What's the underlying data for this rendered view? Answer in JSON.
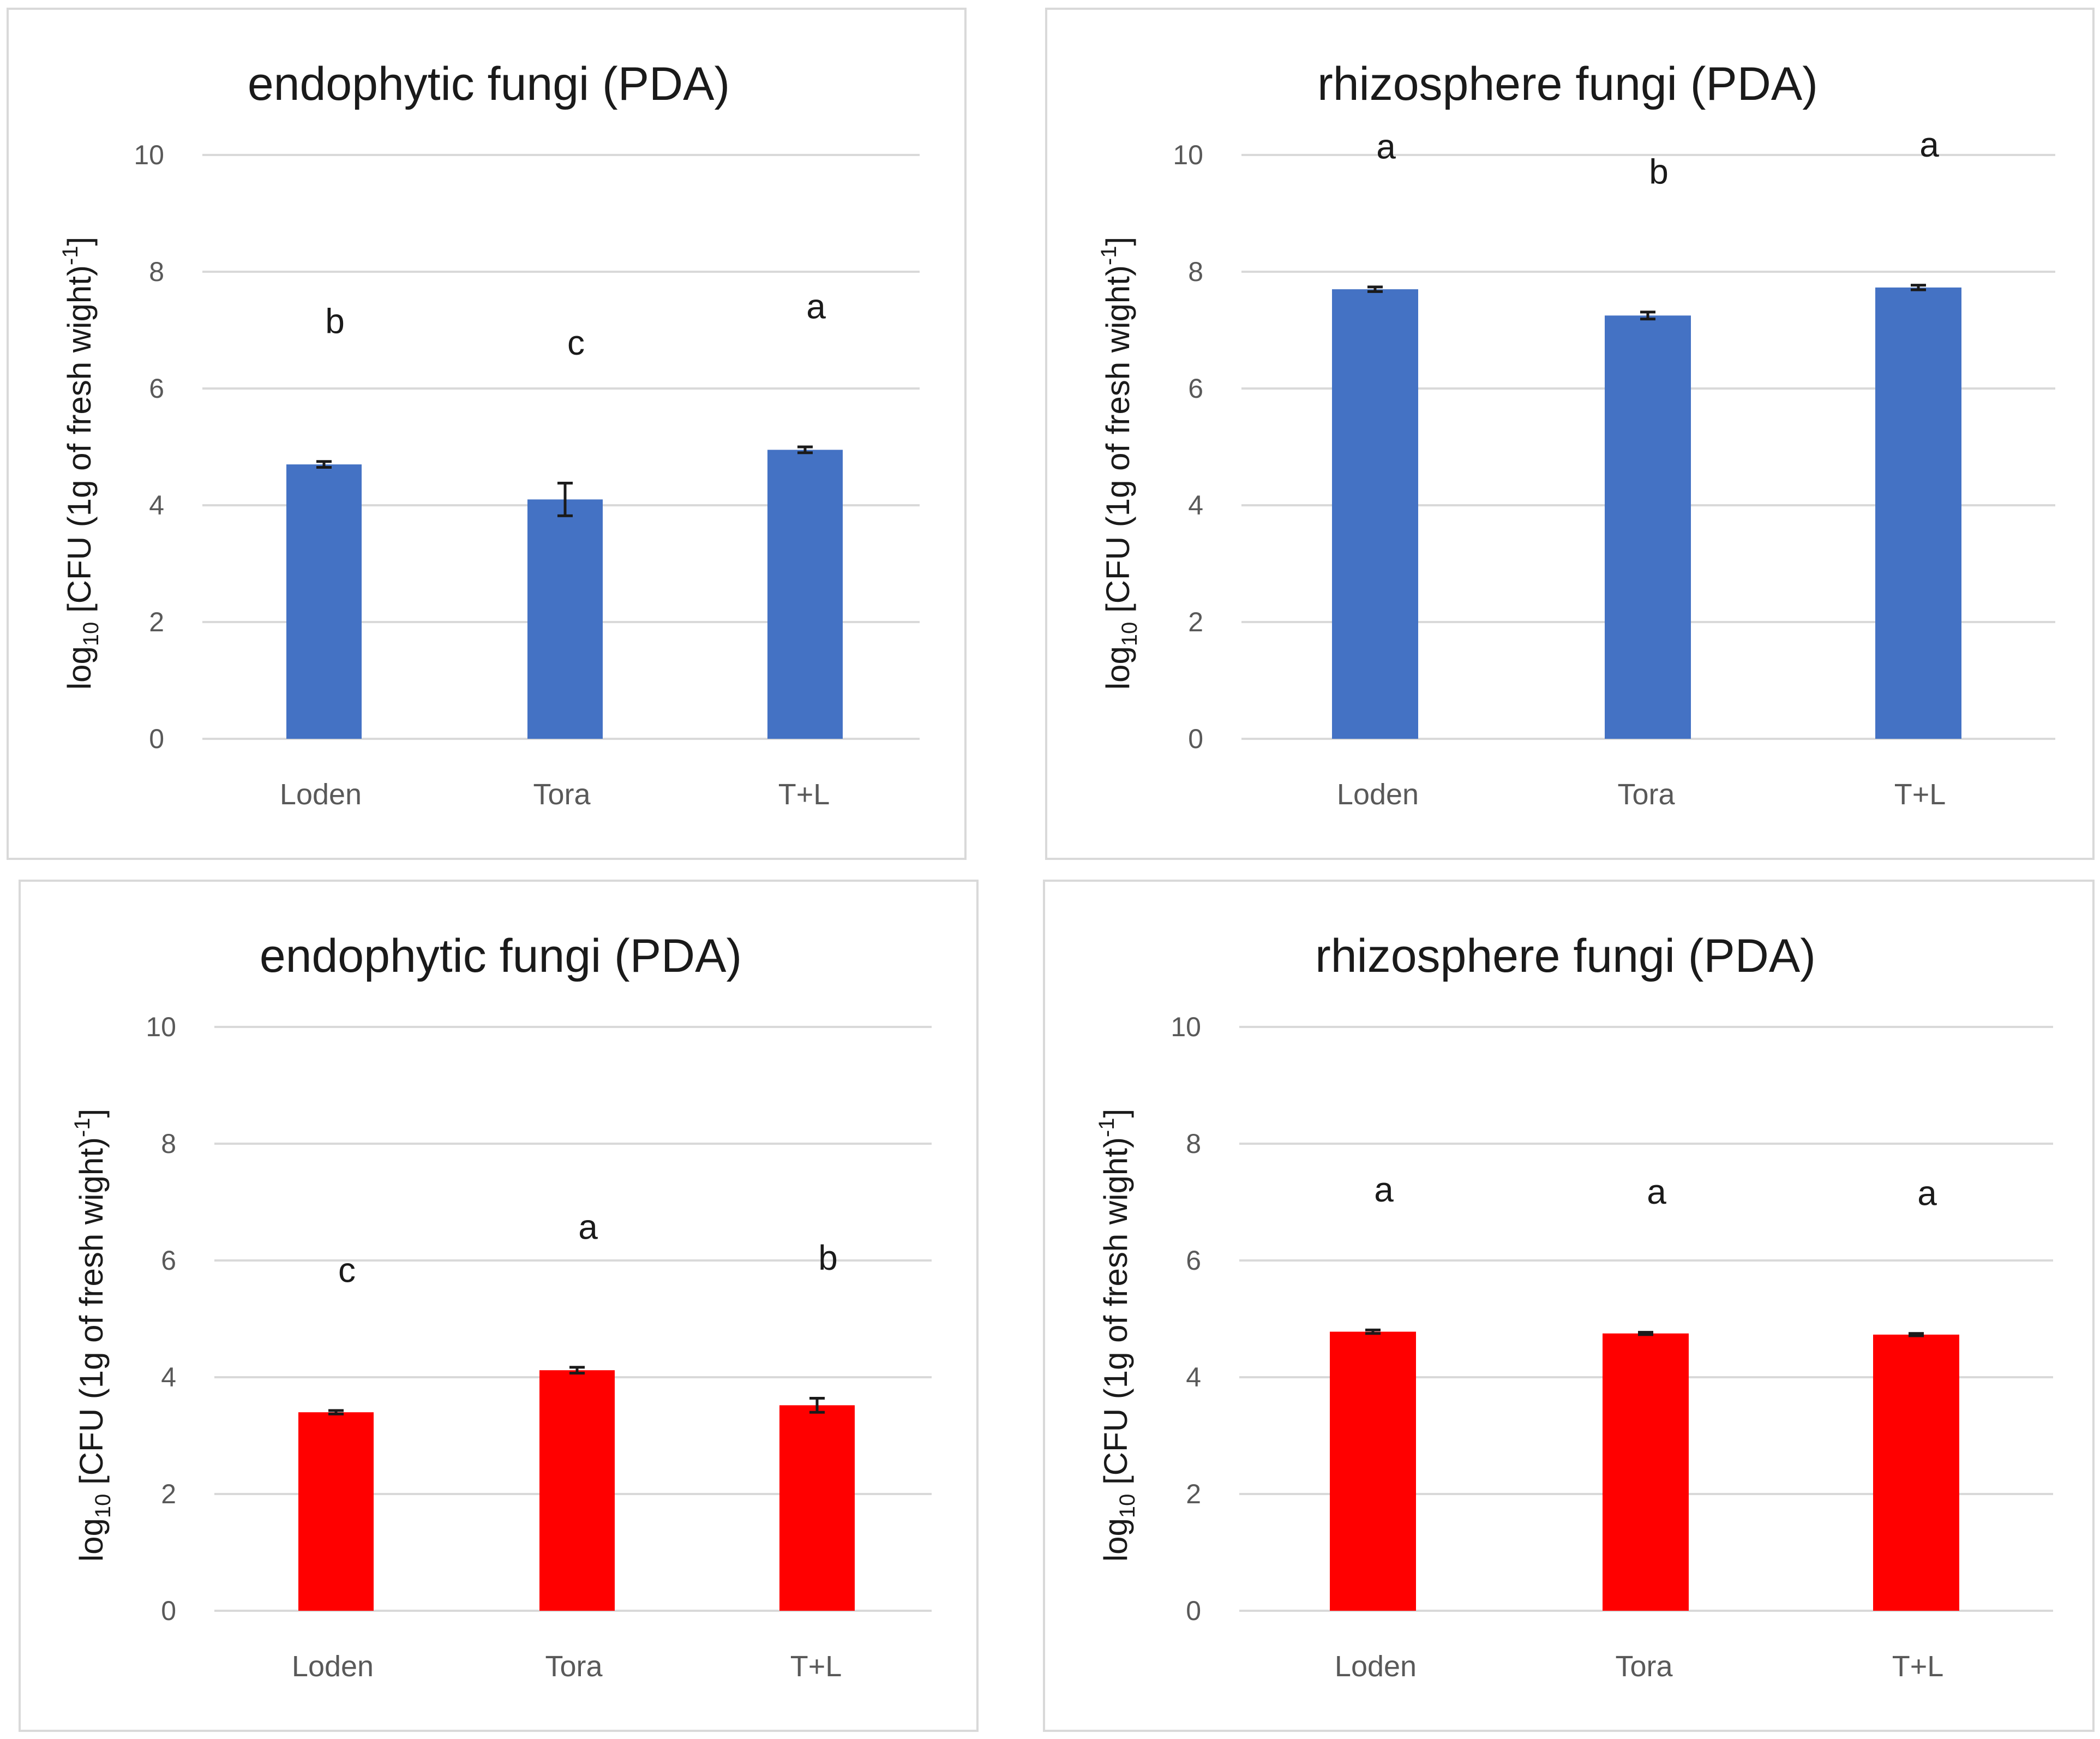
{
  "chart_data": [
    {
      "type": "bar",
      "title": "endophytic fungi (PDA)",
      "ylabel": "log10 [CFU (1g of fresh wight)-1]",
      "ylabel_parts": {
        "prefix": "log",
        "sub": "10",
        "mid": " [CFU (1g of fresh wight)",
        "sup": "-1",
        "suffix": "]"
      },
      "ylim": [
        0,
        10
      ],
      "yticks": [
        0,
        2,
        4,
        6,
        8,
        10
      ],
      "grid": true,
      "categories": [
        "Loden",
        "Tora",
        "T+L"
      ],
      "values": [
        4.7,
        4.1,
        4.95
      ],
      "errors": [
        0.05,
        0.28,
        0.05
      ],
      "significance": [
        "b",
        "c",
        "a"
      ],
      "color": "#4472c4"
    },
    {
      "type": "bar",
      "title": "rhizosphere fungi (PDA)",
      "ylabel": "log10 [CFU (1g of fresh wight)-1]",
      "ylabel_parts": {
        "prefix": "log",
        "sub": "10",
        "mid": " [CFU (1g of fresh wight)",
        "sup": "-1",
        "suffix": "]"
      },
      "ylim": [
        0,
        10
      ],
      "yticks": [
        0,
        2,
        4,
        6,
        8,
        10
      ],
      "grid": true,
      "categories": [
        "Loden",
        "Tora",
        "T+L"
      ],
      "values": [
        7.7,
        7.25,
        7.73
      ],
      "errors": [
        0.04,
        0.06,
        0.04
      ],
      "significance": [
        "a",
        "b",
        "a"
      ],
      "color": "#4472c4"
    },
    {
      "type": "bar",
      "title": "endophytic fungi (PDA)",
      "ylabel": "log10 [CFU (1g of fresh wight)-1]",
      "ylabel_parts": {
        "prefix": "log",
        "sub": "10",
        "mid": " [CFU (1g of fresh wight)",
        "sup": "-1",
        "suffix": "]"
      },
      "ylim": [
        0,
        10
      ],
      "yticks": [
        0,
        2,
        4,
        6,
        8,
        10
      ],
      "grid": true,
      "categories": [
        "Loden",
        "Tora",
        "T+L"
      ],
      "values": [
        3.4,
        4.12,
        3.52
      ],
      "errors": [
        0.03,
        0.05,
        0.12
      ],
      "significance": [
        "c",
        "a",
        "b"
      ],
      "color": "#ff0000"
    },
    {
      "type": "bar",
      "title": "rhizosphere fungi (PDA)",
      "ylabel": "log10 [CFU (1g of fresh wight)-1]",
      "ylabel_parts": {
        "prefix": "log",
        "sub": "10",
        "mid": " [CFU (1g of fresh wight)",
        "sup": "-1",
        "suffix": "]"
      },
      "ylim": [
        0,
        10
      ],
      "yticks": [
        0,
        2,
        4,
        6,
        8,
        10
      ],
      "grid": true,
      "categories": [
        "Loden",
        "Tora",
        "T+L"
      ],
      "values": [
        4.78,
        4.75,
        4.73
      ],
      "errors": [
        0.03,
        0.02,
        0.02
      ],
      "significance": [
        "a",
        "a",
        "a"
      ],
      "color": "#ff0000"
    }
  ]
}
